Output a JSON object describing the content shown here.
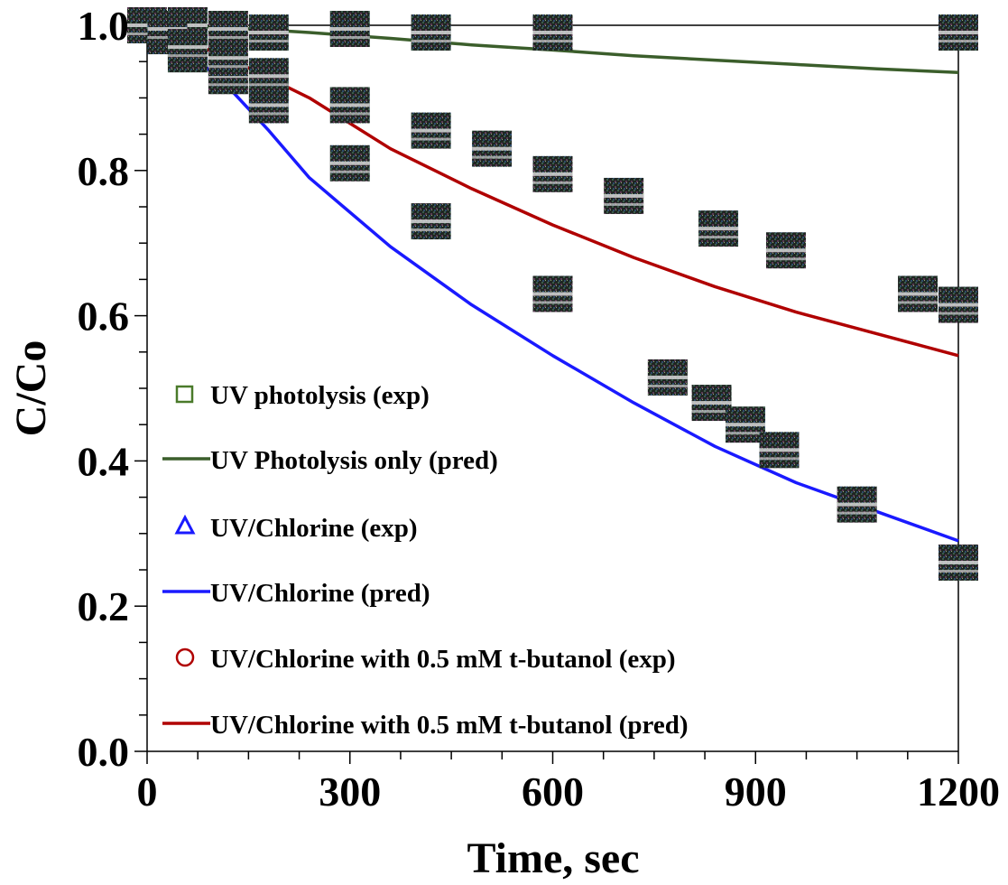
{
  "chart_data": {
    "type": "scatter",
    "xlabel": "Time, sec",
    "ylabel": "C/Co",
    "xlim": [
      0,
      1200
    ],
    "ylim": [
      0,
      1.0
    ],
    "x_ticks": [
      0,
      300,
      600,
      900,
      1200
    ],
    "x_tick_labels": [
      "0",
      "300",
      "600",
      "900",
      "1200"
    ],
    "y_ticks": [
      0.0,
      0.2,
      0.4,
      0.6,
      0.8,
      1.0
    ],
    "y_tick_labels": [
      "0.0",
      "0.2",
      "0.4",
      "0.6",
      "0.8",
      "1.0"
    ],
    "grid": false,
    "legend_position": "lower-left",
    "legend_labels": {
      "uv_exp": "UV photolysis (exp)",
      "uv_pred": "UV Photolysis only (pred)",
      "cl_exp": "UV/Chlorine (exp)",
      "cl_pred": "UV/Chlorine (pred)",
      "tb_exp": "UV/Chlorine with 0.5 mM t-butanol (exp)",
      "tb_pred": "UV/Chlorine with 0.5 mM t-butanol (pred)"
    },
    "series": [
      {
        "name": "UV photolysis (exp)",
        "kind": "scatter",
        "marker": "square",
        "color": "#4a7a2a",
        "x": [
          0,
          60,
          120,
          180,
          300,
          420,
          600,
          1200
        ],
        "y": [
          1.0,
          1.0,
          0.995,
          0.99,
          0.995,
          0.99,
          0.99,
          0.99
        ]
      },
      {
        "name": "UV Photolysis only (pred)",
        "kind": "line",
        "color": "#3b5e2b",
        "x": [
          0,
          120,
          240,
          360,
          480,
          600,
          720,
          840,
          960,
          1080,
          1200
        ],
        "y": [
          1.0,
          0.997,
          0.99,
          0.982,
          0.973,
          0.966,
          0.958,
          0.952,
          0.946,
          0.94,
          0.935
        ]
      },
      {
        "name": "UV/Chlorine (exp)",
        "kind": "scatter",
        "marker": "triangle",
        "color": "#1a1aff",
        "x": [
          0,
          30,
          60,
          120,
          180,
          300,
          420,
          600,
          770,
          835,
          885,
          935,
          1050,
          1200
        ],
        "y": [
          1.0,
          0.985,
          0.96,
          0.93,
          0.89,
          0.81,
          0.73,
          0.63,
          0.515,
          0.48,
          0.45,
          0.415,
          0.34,
          0.26
        ]
      },
      {
        "name": "UV/Chlorine (pred)",
        "kind": "line",
        "color": "#1a1aff",
        "x": [
          0,
          60,
          120,
          180,
          240,
          360,
          480,
          600,
          720,
          840,
          960,
          1080,
          1200
        ],
        "y": [
          1.0,
          0.965,
          0.915,
          0.855,
          0.79,
          0.695,
          0.615,
          0.545,
          0.48,
          0.42,
          0.37,
          0.33,
          0.29
        ]
      },
      {
        "name": "UV/Chlorine with 0.5 mM t-butanol (exp)",
        "kind": "scatter",
        "marker": "circle",
        "color": "#b00000",
        "x": [
          30,
          60,
          120,
          180,
          300,
          420,
          510,
          600,
          705,
          845,
          945,
          1140,
          1200
        ],
        "y": [
          0.995,
          0.97,
          0.955,
          0.93,
          0.89,
          0.855,
          0.83,
          0.795,
          0.765,
          0.72,
          0.69,
          0.63,
          0.615
        ]
      },
      {
        "name": "UV/Chlorine with 0.5 mM t-butanol (pred)",
        "kind": "line",
        "color": "#b00000",
        "x": [
          0,
          120,
          240,
          360,
          480,
          600,
          720,
          840,
          960,
          1080,
          1200
        ],
        "y": [
          1.0,
          0.955,
          0.9,
          0.83,
          0.775,
          0.725,
          0.68,
          0.64,
          0.605,
          0.575,
          0.545
        ]
      }
    ]
  }
}
